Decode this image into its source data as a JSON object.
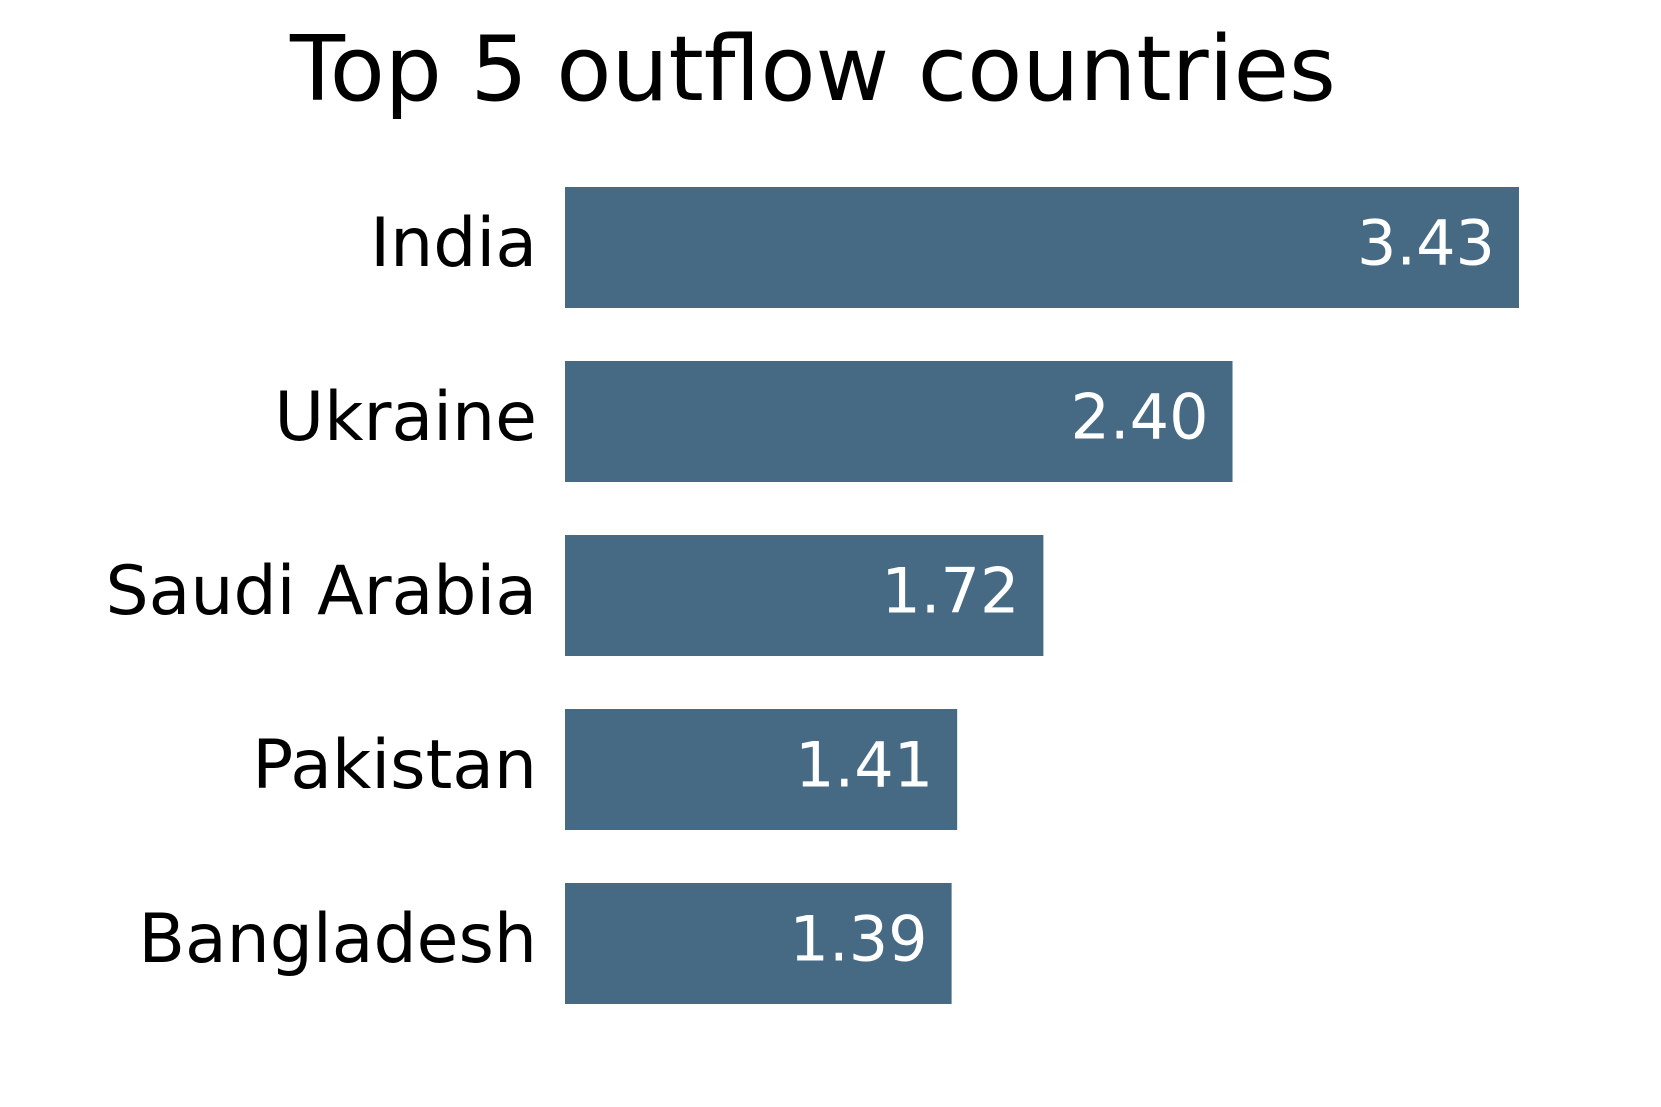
{
  "chart_data": {
    "type": "barh",
    "title": "Top 5 outflow countries",
    "categories": [
      "India",
      "Ukraine",
      "Saudi Arabia",
      "Pakistan",
      "Bangladesh"
    ],
    "values": [
      3.43,
      2.4,
      1.72,
      1.41,
      1.39
    ],
    "value_labels": [
      "3.43",
      "2.40",
      "1.72",
      "1.41",
      "1.39"
    ],
    "color": "#466a84"
  }
}
